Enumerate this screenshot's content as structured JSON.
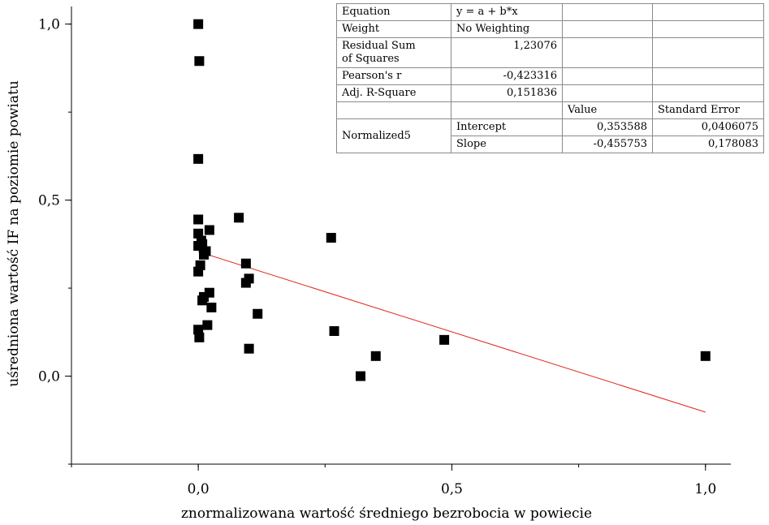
{
  "chart_data": {
    "type": "scatter",
    "xlabel": "znormalizowana wartość średniego bezrobocia w powiecie",
    "ylabel": "uśredniona wartość IF na poziomie powiatu",
    "xlim": [
      -0.25,
      1.05
    ],
    "ylim": [
      -0.25,
      1.05
    ],
    "x_ticks": [
      0.0,
      0.5,
      1.0
    ],
    "x_tick_labels": [
      "0,0",
      "0,5",
      "1,0"
    ],
    "y_ticks": [
      0.0,
      0.5,
      1.0
    ],
    "y_tick_labels": [
      "0,0",
      "0,5",
      "1,0"
    ],
    "grid": false,
    "point_color": "#000000",
    "fit_line_color": "#e0241b",
    "points": [
      {
        "x": 0.0,
        "y": 1.0
      },
      {
        "x": 0.002,
        "y": 0.895
      },
      {
        "x": 0.0,
        "y": 0.617
      },
      {
        "x": 0.0,
        "y": 0.445
      },
      {
        "x": 0.0,
        "y": 0.405
      },
      {
        "x": 0.0,
        "y": 0.37
      },
      {
        "x": 0.0,
        "y": 0.297
      },
      {
        "x": 0.006,
        "y": 0.385
      },
      {
        "x": 0.008,
        "y": 0.375
      },
      {
        "x": 0.011,
        "y": 0.345
      },
      {
        "x": 0.004,
        "y": 0.315
      },
      {
        "x": 0.022,
        "y": 0.415
      },
      {
        "x": 0.015,
        "y": 0.355
      },
      {
        "x": 0.011,
        "y": 0.225
      },
      {
        "x": 0.008,
        "y": 0.215
      },
      {
        "x": 0.022,
        "y": 0.237
      },
      {
        "x": 0.026,
        "y": 0.195
      },
      {
        "x": 0.018,
        "y": 0.145
      },
      {
        "x": 0.0,
        "y": 0.132
      },
      {
        "x": 0.002,
        "y": 0.11
      },
      {
        "x": 0.08,
        "y": 0.45
      },
      {
        "x": 0.094,
        "y": 0.32
      },
      {
        "x": 0.094,
        "y": 0.265
      },
      {
        "x": 0.1,
        "y": 0.277
      },
      {
        "x": 0.1,
        "y": 0.078
      },
      {
        "x": 0.117,
        "y": 0.177
      },
      {
        "x": 0.262,
        "y": 0.393
      },
      {
        "x": 0.268,
        "y": 0.128
      },
      {
        "x": 0.32,
        "y": 0.0
      },
      {
        "x": 0.35,
        "y": 0.057
      },
      {
        "x": 0.485,
        "y": 0.103
      },
      {
        "x": 1.0,
        "y": 0.057
      }
    ],
    "fit_line": {
      "intercept": 0.353588,
      "slope": -0.455753,
      "x_range": [
        0.0,
        1.0
      ]
    }
  },
  "stats_table": {
    "equation_label": "Equation",
    "equation_value": "y = a + b*x",
    "weight_label": "Weight",
    "weight_value": "No Weighting",
    "rss_label_1": "Residual Sum",
    "rss_label_2": "of Squares",
    "rss_value": "1,23076",
    "pearson_label": "Pearson's r",
    "pearson_value": "-0,423316",
    "adjr_label": "Adj. R-Square",
    "adjr_value": "0,151836",
    "value_header": "Value",
    "stderr_header": "Standard Error",
    "group_label": "Normalized5",
    "intercept_label": "Intercept",
    "intercept_value": "0,353588",
    "intercept_error": "0,0406075",
    "slope_label": "Slope",
    "slope_value": "-0,455753",
    "slope_error": "0,178083"
  }
}
